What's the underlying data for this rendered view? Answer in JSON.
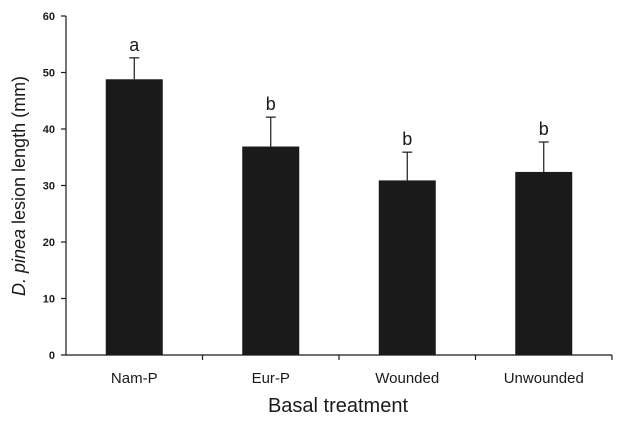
{
  "chart_data": {
    "type": "bar",
    "categories": [
      "Nam-P",
      "Eur-P",
      "Wounded",
      "Unwounded"
    ],
    "values": [
      48.8,
      36.9,
      30.9,
      32.4
    ],
    "error_upper": [
      52.6,
      42.1,
      35.9,
      37.7
    ],
    "significance": [
      "a",
      "b",
      "b",
      "b"
    ],
    "xlabel": "Basal treatment",
    "ylabel": {
      "italic": "D. pinea",
      "rest": " lesion length (mm)"
    },
    "ylim": [
      0,
      60
    ],
    "yticks": [
      0,
      10,
      20,
      30,
      40,
      50,
      60
    ],
    "grid": false,
    "legend": "none",
    "bar_color": "#1a1a1a"
  }
}
